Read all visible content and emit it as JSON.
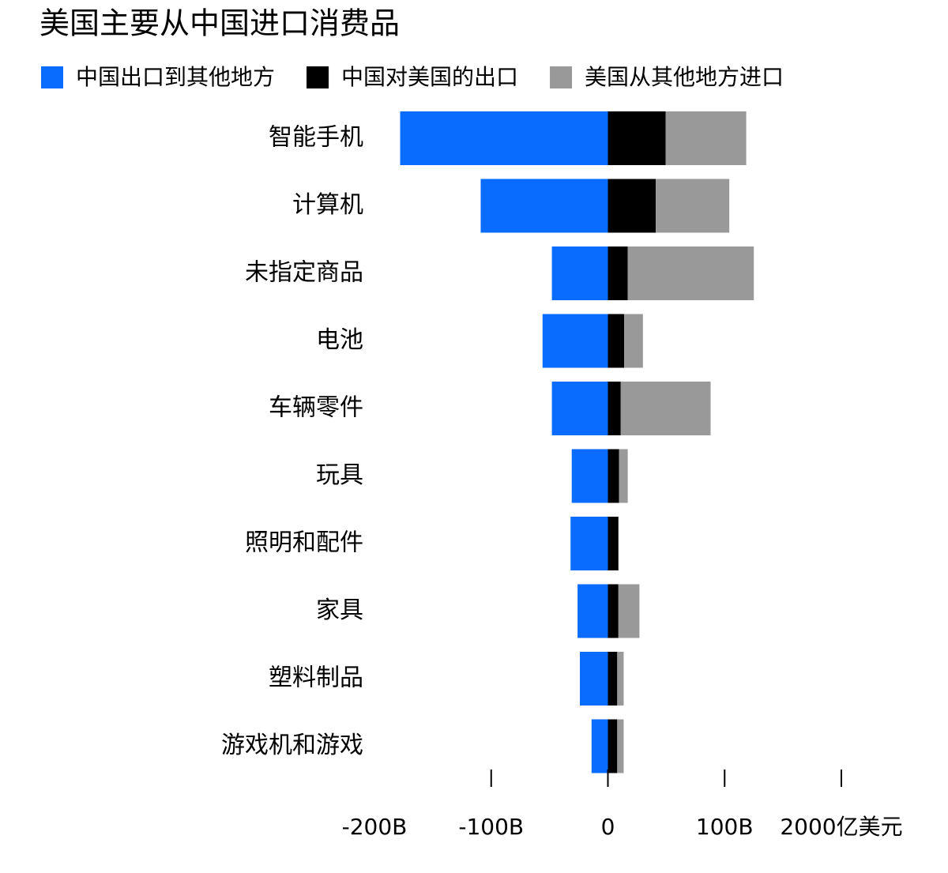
{
  "chart_data": {
    "type": "diverging-stacked-bar",
    "title": "美国主要从中国进口消费品",
    "categories": [
      "智能手机",
      "计算机",
      "未指定商品",
      "电池",
      "车辆零件",
      "玩具",
      "照明和配件",
      "家具",
      "塑料制品",
      "游戏机和游戏"
    ],
    "series": [
      {
        "name": "中国出口到其他地方",
        "color": "#0a6cff",
        "values": [
          -178,
          -109,
          -48,
          -56,
          -48,
          -31,
          -32,
          -26,
          -24,
          -14
        ]
      },
      {
        "name": "中国对美国的出口",
        "color": "#000000",
        "values": [
          49.5,
          41,
          17,
          14,
          11,
          9.5,
          9,
          9,
          8,
          8
        ]
      },
      {
        "name": "美国从其他地方进口",
        "color": "#999999",
        "values": [
          69,
          63,
          108,
          16,
          77,
          7.5,
          0,
          18,
          5.5,
          5.5
        ]
      }
    ],
    "xlim": [
      -200,
      200
    ],
    "xticks": [
      {
        "value": -200,
        "label": "-200B"
      },
      {
        "value": -100,
        "label": "-100B"
      },
      0,
      {
        "value": 100,
        "label": "100B"
      },
      {
        "value": 200,
        "label": "2000亿美元"
      }
    ]
  }
}
